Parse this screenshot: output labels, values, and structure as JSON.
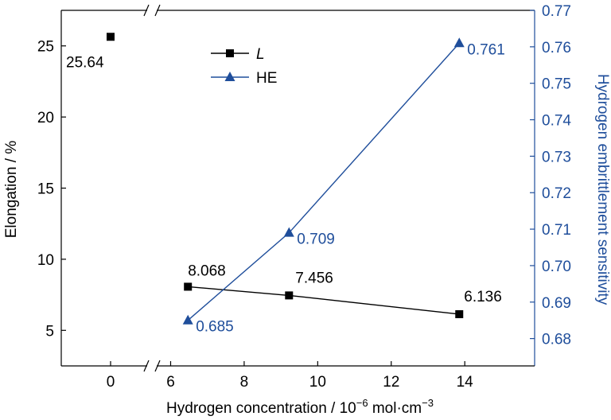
{
  "chart_data": {
    "type": "line",
    "xlabel": "Hydrogen concentration / 10",
    "xlabel_exponent": "−6",
    "xlabel_unit": " mol·cm",
    "xlabel_unit_exponent": "−3",
    "ylabel_left": "Elongation / %",
    "ylabel_right": "Hydrogen embrittlement sensitivity",
    "x_axis": {
      "segments": [
        {
          "range": [
            -1.5,
            1.5
          ],
          "ticks": [
            0
          ],
          "tick_labels": [
            "0"
          ]
        },
        {
          "range": [
            5.6,
            15.9
          ],
          "ticks": [
            6,
            8,
            10,
            12,
            14
          ],
          "tick_labels": [
            "6",
            "8",
            "10",
            "12",
            "14"
          ]
        }
      ],
      "break_between": [
        1.5,
        5.6
      ]
    },
    "y_left": {
      "ylim": [
        2.5,
        27.5
      ],
      "ticks": [
        5,
        10,
        15,
        20,
        25
      ],
      "tick_labels": [
        "5",
        "10",
        "15",
        "20",
        "25"
      ]
    },
    "y_right": {
      "ylim": [
        0.6725,
        0.77
      ],
      "ticks": [
        0.68,
        0.69,
        0.7,
        0.71,
        0.72,
        0.73,
        0.74,
        0.75,
        0.76,
        0.77
      ],
      "tick_labels": [
        "0.68",
        "0.69",
        "0.70",
        "0.71",
        "0.72",
        "0.73",
        "0.74",
        "0.75",
        "0.76",
        "0.77"
      ]
    },
    "series": [
      {
        "name": "L",
        "axis": "left",
        "marker": "square",
        "color": "#000000",
        "points": [
          {
            "x": 0,
            "y": 25.64,
            "label": "25.64",
            "connected": false
          },
          {
            "x": 6.47,
            "y": 8.068,
            "label": "8.068",
            "connected": true
          },
          {
            "x": 9.22,
            "y": 7.456,
            "label": "7.456",
            "connected": true
          },
          {
            "x": 13.85,
            "y": 6.136,
            "label": "6.136",
            "connected": true
          }
        ]
      },
      {
        "name": "HE",
        "axis": "right",
        "marker": "triangle",
        "color": "#1f4e9b",
        "points": [
          {
            "x": 6.47,
            "y": 0.685,
            "label": "0.685"
          },
          {
            "x": 9.22,
            "y": 0.709,
            "label": "0.709"
          },
          {
            "x": 13.85,
            "y": 0.761,
            "label": "0.761"
          }
        ]
      }
    ],
    "legend_position": "top-center",
    "grid": false
  }
}
